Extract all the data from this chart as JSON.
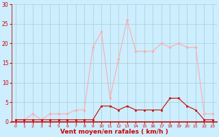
{
  "hours": [
    0,
    1,
    2,
    3,
    4,
    5,
    6,
    7,
    8,
    9,
    10,
    11,
    12,
    13,
    14,
    15,
    16,
    17,
    18,
    19,
    20,
    21,
    22,
    23
  ],
  "rafales": [
    0.5,
    0.5,
    2,
    0.5,
    2,
    2,
    2,
    3,
    3,
    19,
    23,
    6,
    16,
    26,
    18,
    18,
    18,
    20,
    19,
    20,
    19,
    19,
    2,
    2
  ],
  "moyen": [
    0.5,
    0.5,
    0.5,
    0.5,
    0.5,
    0.5,
    0.5,
    0.5,
    0.5,
    0.5,
    4,
    4,
    3,
    4,
    3,
    3,
    3,
    3,
    6,
    6,
    4,
    3,
    0.5,
    0.5
  ],
  "color_rafales": "#ffaaaa",
  "color_moyen": "#cc0000",
  "bg_color": "#cceeff",
  "grid_color": "#aacccc",
  "ylabel_ticks": [
    0,
    5,
    10,
    15,
    20,
    25,
    30
  ],
  "ylim": [
    0,
    30
  ],
  "xlabel": "Vent moyen/en rafales ( km/h )",
  "xlabel_color": "#cc0000",
  "tick_color": "#cc0000",
  "marker_rafales": "o",
  "marker_moyen": "s"
}
